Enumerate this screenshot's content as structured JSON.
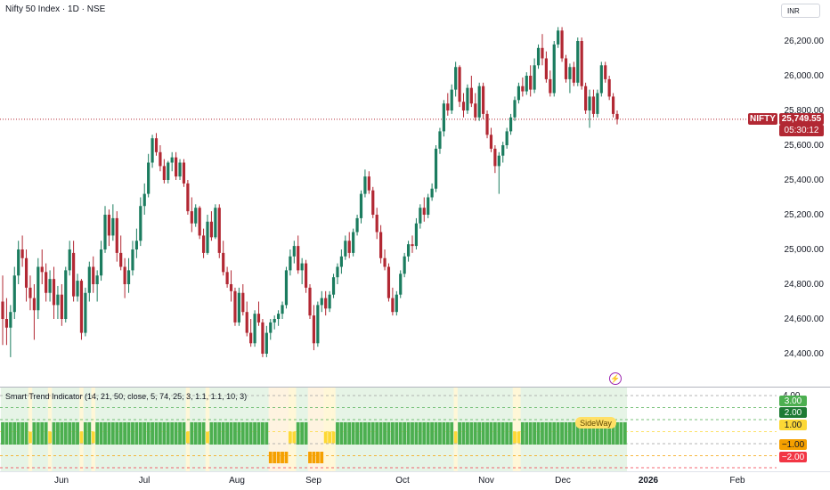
{
  "header": {
    "title": "Nifty 50 Index · 1D · NSE",
    "currency": "INR"
  },
  "colors": {
    "up": "#1b7c5f",
    "down": "#b22833",
    "green_block": "#4caf50",
    "yellow_block": "#fdd835",
    "orange_block": "#f5a000"
  },
  "price_axis": {
    "labels": [
      "26,200.00",
      "26,000.00",
      "25,800.00",
      "25,600.00",
      "25,400.00",
      "25,200.00",
      "25,000.00",
      "24,800.00",
      "24,600.00",
      "24,400.00"
    ]
  },
  "last_price": {
    "symbol": "NIFTY",
    "value": "25,749.55",
    "countdown": "05:30:12"
  },
  "indicator": {
    "title": "Smart Trend Indicator (14, 21, 50, close, 5, 74, 25, 3, 1.1, 1.1, 10, 3)",
    "axis_labels": [
      "4.00",
      "3.00",
      "2.00",
      "1.00",
      "0.00",
      "−1.00",
      "−2.00"
    ],
    "sideway_label": "SideWay",
    "alert_icon": "lightning-icon"
  },
  "time_axis": {
    "labels": [
      "Jun",
      "Jul",
      "Aug",
      "Sep",
      "Oct",
      "Nov",
      "Dec",
      "2026",
      "Feb"
    ]
  },
  "chart_data": {
    "type": "candlestick",
    "title": "Nifty 50 Index · 1D · NSE",
    "x_labels": [
      "Jun",
      "Jul",
      "Aug",
      "Sep",
      "Oct",
      "Nov",
      "Dec",
      "2026",
      "Feb"
    ],
    "ylim": [
      24300,
      26320
    ],
    "last": 25749.55,
    "candles": [
      [
        24700,
        24850,
        24450,
        24600
      ],
      [
        24600,
        24720,
        24450,
        24550
      ],
      [
        24550,
        24680,
        24380,
        24640
      ],
      [
        24640,
        24900,
        24600,
        24850
      ],
      [
        24850,
        25050,
        24800,
        25000
      ],
      [
        25000,
        25080,
        24900,
        24950
      ],
      [
        24950,
        25000,
        24700,
        24780
      ],
      [
        24780,
        24850,
        24650,
        24720
      ],
      [
        24720,
        24800,
        24480,
        24650
      ],
      [
        24650,
        24950,
        24600,
        24900
      ],
      [
        24900,
        25000,
        24800,
        24870
      ],
      [
        24870,
        24920,
        24700,
        24750
      ],
      [
        24750,
        24880,
        24700,
        24830
      ],
      [
        24830,
        24900,
        24600,
        24680
      ],
      [
        24680,
        24790,
        24600,
        24740
      ],
      [
        24740,
        24800,
        24560,
        24600
      ],
      [
        24600,
        24900,
        24580,
        24880
      ],
      [
        24880,
        25050,
        24850,
        25000
      ],
      [
        24980,
        25050,
        24700,
        24730
      ],
      [
        24730,
        24860,
        24700,
        24820
      ],
      [
        24820,
        24830,
        24480,
        24520
      ],
      [
        24520,
        24780,
        24500,
        24750
      ],
      [
        24750,
        24930,
        24700,
        24900
      ],
      [
        24900,
        24960,
        24750,
        24800
      ],
      [
        24800,
        24880,
        24700,
        24850
      ],
      [
        24850,
        25050,
        24820,
        25000
      ],
      [
        25000,
        25250,
        24980,
        25200
      ],
      [
        25200,
        25230,
        25020,
        25080
      ],
      [
        25080,
        25260,
        25050,
        25180
      ],
      [
        25180,
        25220,
        24930,
        24980
      ],
      [
        24980,
        25080,
        24880,
        24900
      ],
      [
        24900,
        24950,
        24720,
        24800
      ],
      [
        24800,
        24950,
        24750,
        24880
      ],
      [
        24880,
        25050,
        24850,
        25000
      ],
      [
        25000,
        25120,
        24950,
        25050
      ],
      [
        25050,
        25300,
        25020,
        25250
      ],
      [
        25250,
        25380,
        25200,
        25320
      ],
      [
        25320,
        25550,
        25300,
        25500
      ],
      [
        25500,
        25660,
        25470,
        25640
      ],
      [
        25640,
        25670,
        25540,
        25560
      ],
      [
        25560,
        25600,
        25450,
        25480
      ],
      [
        25480,
        25520,
        25380,
        25400
      ],
      [
        25400,
        25510,
        25380,
        25500
      ],
      [
        25500,
        25560,
        25450,
        25530
      ],
      [
        25530,
        25560,
        25400,
        25420
      ],
      [
        25420,
        25520,
        25400,
        25500
      ],
      [
        25500,
        25520,
        25360,
        25380
      ],
      [
        25380,
        25400,
        25200,
        25220
      ],
      [
        25220,
        25300,
        25100,
        25150
      ],
      [
        25150,
        25260,
        25130,
        25240
      ],
      [
        25240,
        25250,
        25060,
        25080
      ],
      [
        25080,
        25120,
        24950,
        24980
      ],
      [
        24980,
        25200,
        24970,
        25160
      ],
      [
        25160,
        25220,
        25050,
        25070
      ],
      [
        25070,
        25260,
        25060,
        25240
      ],
      [
        25240,
        25260,
        24950,
        24980
      ],
      [
        24980,
        25050,
        24850,
        24870
      ],
      [
        24870,
        24900,
        24780,
        24800
      ],
      [
        24800,
        24880,
        24700,
        24760
      ],
      [
        24760,
        24780,
        24560,
        24580
      ],
      [
        24580,
        24780,
        24560,
        24750
      ],
      [
        24750,
        24800,
        24620,
        24640
      ],
      [
        24640,
        24700,
        24500,
        24520
      ],
      [
        24520,
        24600,
        24440,
        24460
      ],
      [
        24460,
        24650,
        24440,
        24630
      ],
      [
        24630,
        24700,
        24560,
        24580
      ],
      [
        24580,
        24600,
        24380,
        24400
      ],
      [
        24400,
        24560,
        24380,
        24520
      ],
      [
        24520,
        24600,
        24480,
        24580
      ],
      [
        24580,
        24620,
        24540,
        24600
      ],
      [
        24600,
        24650,
        24560,
        24630
      ],
      [
        24630,
        24700,
        24600,
        24680
      ],
      [
        24680,
        24900,
        24660,
        24880
      ],
      [
        24880,
        25000,
        24850,
        24960
      ],
      [
        24960,
        25050,
        24920,
        25020
      ],
      [
        25020,
        25080,
        24860,
        24880
      ],
      [
        24880,
        24950,
        24800,
        24920
      ],
      [
        24920,
        24940,
        24750,
        24780
      ],
      [
        24780,
        24800,
        24600,
        24620
      ],
      [
        24620,
        24680,
        24420,
        24460
      ],
      [
        24460,
        24700,
        24440,
        24680
      ],
      [
        24680,
        24760,
        24640,
        24720
      ],
      [
        24720,
        24760,
        24620,
        24660
      ],
      [
        24660,
        24760,
        24640,
        24740
      ],
      [
        24740,
        24860,
        24720,
        24840
      ],
      [
        24840,
        24920,
        24800,
        24900
      ],
      [
        24900,
        25000,
        24860,
        24960
      ],
      [
        24960,
        25080,
        24940,
        25050
      ],
      [
        25050,
        25100,
        24950,
        24980
      ],
      [
        24980,
        25120,
        24960,
        25100
      ],
      [
        25100,
        25200,
        25080,
        25180
      ],
      [
        25180,
        25340,
        25150,
        25320
      ],
      [
        25320,
        25460,
        25300,
        25420
      ],
      [
        25420,
        25450,
        25320,
        25340
      ],
      [
        25340,
        25360,
        25180,
        25200
      ],
      [
        25200,
        25240,
        25060,
        25100
      ],
      [
        25100,
        25140,
        24920,
        24950
      ],
      [
        24950,
        25000,
        24880,
        24900
      ],
      [
        24900,
        24920,
        24700,
        24720
      ],
      [
        24720,
        24780,
        24620,
        24640
      ],
      [
        24640,
        24760,
        24620,
        24740
      ],
      [
        24740,
        24880,
        24720,
        24860
      ],
      [
        24860,
        24980,
        24840,
        24960
      ],
      [
        24960,
        25050,
        24930,
        25030
      ],
      [
        25030,
        25080,
        24980,
        25020
      ],
      [
        25020,
        25180,
        25000,
        25150
      ],
      [
        25150,
        25260,
        25120,
        25240
      ],
      [
        25240,
        25300,
        25160,
        25200
      ],
      [
        25200,
        25320,
        25180,
        25300
      ],
      [
        25300,
        25380,
        25280,
        25350
      ],
      [
        25350,
        25600,
        25330,
        25580
      ],
      [
        25580,
        25700,
        25550,
        25680
      ],
      [
        25680,
        25860,
        25650,
        25840
      ],
      [
        25840,
        25900,
        25770,
        25800
      ],
      [
        25800,
        25950,
        25780,
        25920
      ],
      [
        25920,
        26080,
        25880,
        26050
      ],
      [
        26050,
        26060,
        25820,
        25850
      ],
      [
        25850,
        25900,
        25760,
        25800
      ],
      [
        25800,
        25950,
        25780,
        25930
      ],
      [
        25930,
        26000,
        25820,
        25840
      ],
      [
        25840,
        25900,
        25740,
        25760
      ],
      [
        25760,
        25960,
        25740,
        25940
      ],
      [
        25940,
        25960,
        25750,
        25780
      ],
      [
        25780,
        25800,
        25640,
        25660
      ],
      [
        25660,
        25700,
        25560,
        25580
      ],
      [
        25580,
        25600,
        25440,
        25480
      ],
      [
        25480,
        25560,
        25320,
        25540
      ],
      [
        25540,
        25620,
        25500,
        25600
      ],
      [
        25600,
        25700,
        25580,
        25680
      ],
      [
        25680,
        25780,
        25660,
        25760
      ],
      [
        25760,
        25880,
        25740,
        25860
      ],
      [
        25860,
        25960,
        25840,
        25940
      ],
      [
        25940,
        25990,
        25880,
        25910
      ],
      [
        25910,
        26020,
        25890,
        26000
      ],
      [
        26000,
        26060,
        25880,
        25920
      ],
      [
        25920,
        26100,
        25900,
        26060
      ],
      [
        26060,
        26180,
        26040,
        26160
      ],
      [
        26160,
        26240,
        26060,
        26100
      ],
      [
        26100,
        26140,
        25960,
        25980
      ],
      [
        25980,
        26030,
        25880,
        25900
      ],
      [
        25900,
        26200,
        25880,
        26180
      ],
      [
        26180,
        26280,
        26160,
        26260
      ],
      [
        26260,
        26280,
        26080,
        26100
      ],
      [
        26100,
        26120,
        25960,
        25980
      ],
      [
        25980,
        26070,
        25900,
        26050
      ],
      [
        26050,
        26080,
        25940,
        25960
      ],
      [
        25960,
        26220,
        25940,
        26200
      ],
      [
        26200,
        26220,
        25920,
        25940
      ],
      [
        25940,
        25960,
        25780,
        25800
      ],
      [
        25800,
        25920,
        25700,
        25880
      ],
      [
        25880,
        25920,
        25760,
        25780
      ],
      [
        25780,
        25920,
        25760,
        25900
      ],
      [
        25900,
        26080,
        25880,
        26060
      ],
      [
        26060,
        26080,
        25960,
        25980
      ],
      [
        25980,
        26000,
        25860,
        25880
      ],
      [
        25880,
        25900,
        25760,
        25780
      ],
      [
        25780,
        25800,
        25720,
        25749.55
      ]
    ],
    "indicator_series": {
      "name": "Smart Trend Indicator",
      "ylim": [
        -2,
        4
      ],
      "values": [
        2,
        2,
        2,
        2,
        2,
        2,
        2,
        1,
        2,
        2,
        2,
        2,
        1,
        2,
        2,
        2,
        2,
        2,
        2,
        2,
        1,
        2,
        2,
        1,
        2,
        2,
        2,
        2,
        2,
        2,
        2,
        2,
        2,
        2,
        2,
        2,
        2,
        2,
        2,
        2,
        2,
        2,
        2,
        2,
        2,
        2,
        2,
        1,
        2,
        2,
        2,
        2,
        1,
        2,
        2,
        2,
        2,
        2,
        2,
        2,
        2,
        2,
        2,
        2,
        2,
        2,
        2,
        2,
        -1,
        -1,
        -1,
        -1,
        -1,
        1,
        1,
        2,
        2,
        2,
        -1,
        -1,
        -1,
        -1,
        1,
        1,
        1,
        2,
        2,
        2,
        2,
        2,
        2,
        2,
        2,
        2,
        2,
        2,
        2,
        2,
        2,
        2,
        2,
        2,
        2,
        2,
        2,
        2,
        2,
        2,
        2,
        2,
        2,
        2,
        2,
        2,
        2,
        1,
        2,
        2,
        2,
        2,
        2,
        2,
        2,
        2,
        2,
        2,
        2,
        2,
        2,
        2,
        1,
        1,
        2,
        2,
        2,
        2,
        2,
        2,
        2,
        2,
        2,
        2,
        2,
        2,
        2,
        2,
        2,
        2,
        2,
        2,
        2,
        2,
        2,
        2,
        2,
        2,
        2,
        2,
        2
      ]
    }
  }
}
